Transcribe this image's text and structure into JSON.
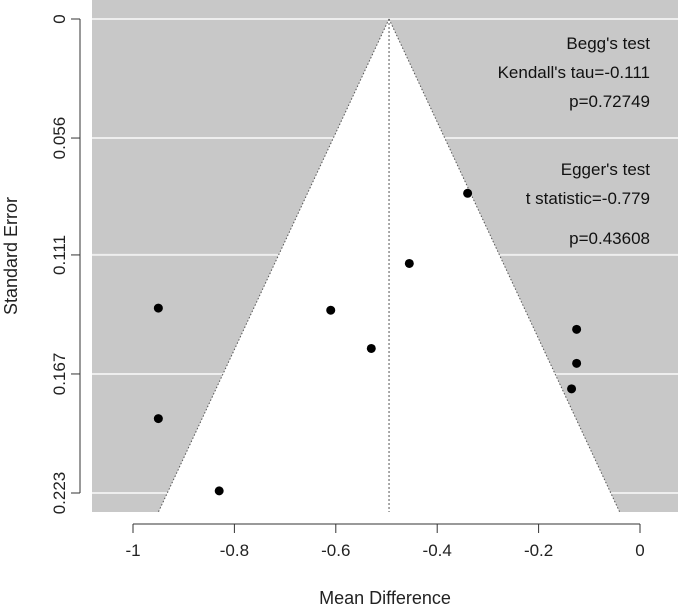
{
  "chart_data": {
    "type": "scatter",
    "subtype": "funnel-plot",
    "xlabel": "Mean Difference",
    "ylabel": "Standard Error",
    "xlim": [
      -1.08,
      0.07
    ],
    "ylim": [
      0.227,
      -0.003
    ],
    "x_ticks": [
      -1,
      -0.8,
      -0.6,
      -0.4,
      -0.2,
      0
    ],
    "x_tick_labels": [
      "-1",
      "-0.8",
      "-0.6",
      "-0.4",
      "-0.2",
      "0"
    ],
    "y_ticks": [
      0,
      0.056,
      0.111,
      0.167,
      0.223
    ],
    "y_tick_labels": [
      "0",
      "0.056",
      "0.111",
      "0.167",
      "0.223"
    ],
    "grid": true,
    "pooled_estimate": -0.495,
    "funnel": {
      "apex": [
        -0.495,
        0
      ],
      "base_left": [
        -0.95,
        0.232
      ],
      "base_right": [
        -0.04,
        0.232
      ]
    },
    "points": [
      {
        "x": -0.34,
        "y": 0.082
      },
      {
        "x": -0.455,
        "y": 0.115
      },
      {
        "x": -0.95,
        "y": 0.136
      },
      {
        "x": -0.61,
        "y": 0.137
      },
      {
        "x": -0.53,
        "y": 0.155
      },
      {
        "x": -0.125,
        "y": 0.146
      },
      {
        "x": -0.125,
        "y": 0.162
      },
      {
        "x": -0.135,
        "y": 0.174
      },
      {
        "x": -0.95,
        "y": 0.188
      },
      {
        "x": -0.83,
        "y": 0.222
      }
    ],
    "annotations": {
      "begg_title": "Begg's test",
      "begg_tau": "Kendall's tau=-0.111",
      "begg_p": "p=0.72749",
      "egger_title": "Egger's test",
      "egger_t": "t statistic=-0.779",
      "egger_p": "p=0.43608"
    },
    "colors": {
      "panel_background": "#c8c8c8",
      "funnel_fill": "#ffffff",
      "grid": "#eeeeee",
      "points": "#000000"
    }
  }
}
